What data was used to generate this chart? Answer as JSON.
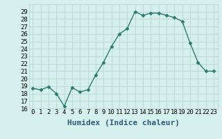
{
  "x": [
    0,
    1,
    2,
    3,
    4,
    5,
    6,
    7,
    8,
    9,
    10,
    11,
    12,
    13,
    14,
    15,
    16,
    17,
    18,
    19,
    20,
    21,
    22,
    23
  ],
  "y": [
    18.7,
    18.5,
    18.9,
    18.0,
    16.3,
    18.8,
    18.2,
    18.5,
    20.5,
    22.2,
    24.3,
    26.0,
    26.7,
    29.0,
    28.5,
    28.8,
    28.8,
    28.5,
    28.2,
    27.7,
    24.8,
    22.2,
    21.0,
    21.0
  ],
  "line_color": "#2d7a6e",
  "marker": "D",
  "marker_size": 2.5,
  "bg_color": "#d6f0ee",
  "grid_color": "#c0dbd8",
  "xlabel": "Humidex (Indice chaleur)",
  "ylim": [
    16,
    30
  ],
  "xlim": [
    -0.5,
    23.5
  ],
  "yticks": [
    16,
    17,
    18,
    19,
    20,
    21,
    22,
    23,
    24,
    25,
    26,
    27,
    28,
    29
  ],
  "xtick_labels": [
    "0",
    "1",
    "2",
    "3",
    "4",
    "5",
    "6",
    "7",
    "8",
    "9",
    "10",
    "11",
    "12",
    "13",
    "14",
    "15",
    "16",
    "17",
    "18",
    "19",
    "20",
    "21",
    "22",
    "23"
  ],
  "xlabel_color": "#2d5a7a",
  "xlabel_fontsize": 8,
  "tick_fontsize": 6.5,
  "linewidth": 1.0
}
